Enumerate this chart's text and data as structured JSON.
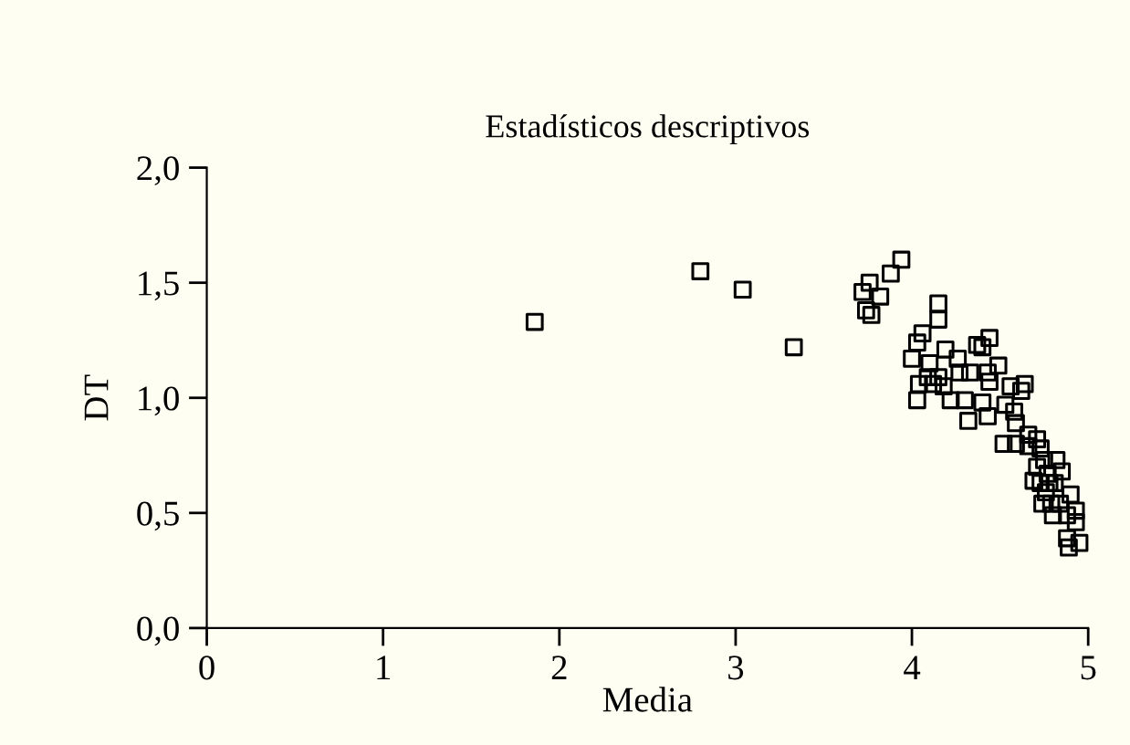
{
  "chart_data": {
    "type": "scatter",
    "title": "Estadísticos descriptivos",
    "xlabel": "Media",
    "ylabel": "DT",
    "xlim": [
      0,
      5
    ],
    "xticks": [
      0,
      1,
      2,
      3,
      4,
      5
    ],
    "ylim": [
      0,
      2
    ],
    "yticks": [
      {
        "value": 0,
        "label": "0,0"
      },
      {
        "value": 0.5,
        "label": "0,5"
      },
      {
        "value": 1,
        "label": "1,0"
      },
      {
        "value": 1.5,
        "label": "1,5"
      },
      {
        "value": 2,
        "label": "2,0"
      }
    ],
    "grid": false,
    "marker": "square",
    "series": [
      {
        "color": "#000000",
        "x": [
          1.86,
          2.8,
          3.04,
          3.33,
          3.72,
          3.76,
          3.74,
          3.77,
          3.82,
          3.88,
          3.94,
          4.0,
          4.03,
          4.06,
          4.03,
          4.04,
          4.09,
          4.1,
          4.12,
          4.15,
          4.15,
          4.15,
          4.18,
          4.19,
          4.22,
          4.26,
          4.27,
          4.3,
          4.33,
          4.32,
          4.37,
          4.4,
          4.44,
          4.43,
          4.4,
          4.44,
          4.43,
          4.49,
          4.52,
          4.53,
          4.56,
          4.58,
          4.59,
          4.59,
          4.62,
          4.64,
          4.66,
          4.66,
          4.71,
          4.73,
          4.71,
          4.69,
          4.73,
          4.75,
          4.77,
          4.74,
          4.78,
          4.79,
          4.82,
          4.8,
          4.85,
          4.84,
          4.81,
          4.9,
          4.88,
          4.93,
          4.88,
          4.93,
          4.89,
          4.95,
          4.76
        ],
        "values": [
          1.33,
          1.55,
          1.47,
          1.22,
          1.46,
          1.5,
          1.38,
          1.36,
          1.44,
          1.54,
          1.6,
          1.17,
          1.24,
          1.28,
          0.99,
          1.06,
          1.09,
          1.15,
          1.06,
          1.41,
          1.34,
          1.09,
          1.05,
          1.21,
          0.99,
          1.17,
          1.11,
          0.99,
          1.11,
          0.9,
          1.23,
          1.22,
          1.26,
          1.11,
          0.98,
          1.07,
          0.92,
          1.14,
          0.8,
          0.97,
          1.05,
          0.94,
          0.8,
          0.89,
          1.03,
          1.06,
          0.84,
          0.79,
          0.82,
          0.78,
          0.7,
          0.64,
          0.63,
          0.73,
          0.67,
          0.54,
          0.63,
          0.54,
          0.73,
          0.49,
          0.68,
          0.54,
          0.63,
          0.58,
          0.49,
          0.51,
          0.39,
          0.46,
          0.35,
          0.37,
          0.59
        ]
      }
    ]
  }
}
